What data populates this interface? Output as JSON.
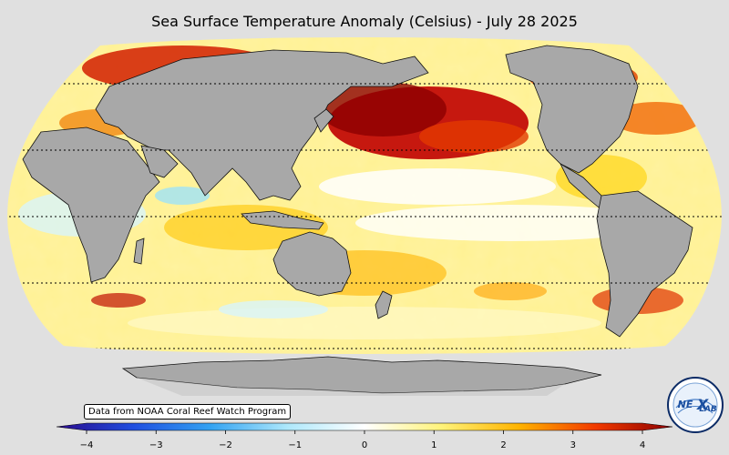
{
  "title": "Sea Surface Temperature Anomaly (Celsius) - July 28 2025",
  "credit": "Data from NOAA Coral Reef Watch Program",
  "colorbar": {
    "min": -4,
    "max": 4,
    "ticks": [
      "−4",
      "−3",
      "−2",
      "−1",
      "0",
      "1",
      "2",
      "3",
      "4"
    ],
    "colors": [
      "#2b0a8c",
      "#1f4ee0",
      "#33a3f2",
      "#aee8fb",
      "#ffffff",
      "#fff37a",
      "#ffb400",
      "#f23a00",
      "#8c0000"
    ]
  },
  "map": {
    "land_color": "#a8a8a8",
    "ocean_base": "#fff6b0"
  },
  "logo": {
    "text_left": "NE",
    "text_right": "LAB"
  }
}
